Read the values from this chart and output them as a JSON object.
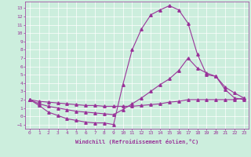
{
  "bg_color": "#cceedd",
  "line_color": "#993399",
  "ylim": [
    -1.5,
    13.8
  ],
  "xlim": [
    -0.5,
    23.5
  ],
  "yticks": [
    -1,
    0,
    1,
    2,
    3,
    4,
    5,
    6,
    7,
    8,
    9,
    10,
    11,
    12,
    13
  ],
  "xticks": [
    0,
    1,
    2,
    3,
    4,
    5,
    6,
    7,
    8,
    9,
    10,
    11,
    12,
    13,
    14,
    15,
    16,
    17,
    18,
    19,
    20,
    21,
    22,
    23
  ],
  "xlabel": "Windchill (Refroidissement éolien,°C)",
  "curve1_x": [
    0,
    1,
    2,
    3,
    4,
    5,
    6,
    7,
    8,
    9,
    10,
    11,
    12,
    13,
    14,
    15,
    16,
    17,
    18,
    19,
    20,
    21,
    22,
    23
  ],
  "curve1_y": [
    2.0,
    1.3,
    0.5,
    0.1,
    -0.3,
    -0.5,
    -0.7,
    -0.8,
    -0.8,
    -1.0,
    3.8,
    8.0,
    10.5,
    12.2,
    12.8,
    13.3,
    12.8,
    11.2,
    7.5,
    5.0,
    4.8,
    3.2,
    2.2,
    2.0
  ],
  "curve2_x": [
    0,
    1,
    2,
    3,
    4,
    5,
    6,
    7,
    8,
    9,
    10,
    11,
    12,
    13,
    14,
    15,
    16,
    17,
    18,
    19,
    20,
    21,
    22,
    23
  ],
  "curve2_y": [
    2.0,
    1.5,
    1.2,
    1.0,
    0.8,
    0.6,
    0.5,
    0.4,
    0.3,
    0.2,
    0.8,
    1.5,
    2.2,
    3.0,
    3.8,
    4.5,
    5.5,
    7.0,
    5.8,
    5.2,
    4.8,
    3.5,
    2.8,
    2.2
  ],
  "curve3_x": [
    0,
    1,
    2,
    3,
    4,
    5,
    6,
    7,
    8,
    9,
    10,
    11,
    12,
    13,
    14,
    15,
    16,
    17,
    18,
    19,
    20,
    21,
    22,
    23
  ],
  "curve3_y": [
    2.0,
    1.8,
    1.7,
    1.6,
    1.5,
    1.4,
    1.3,
    1.3,
    1.2,
    1.2,
    1.2,
    1.2,
    1.3,
    1.4,
    1.5,
    1.7,
    1.8,
    2.0,
    2.0,
    2.0,
    2.0,
    2.0,
    2.0,
    2.2
  ]
}
